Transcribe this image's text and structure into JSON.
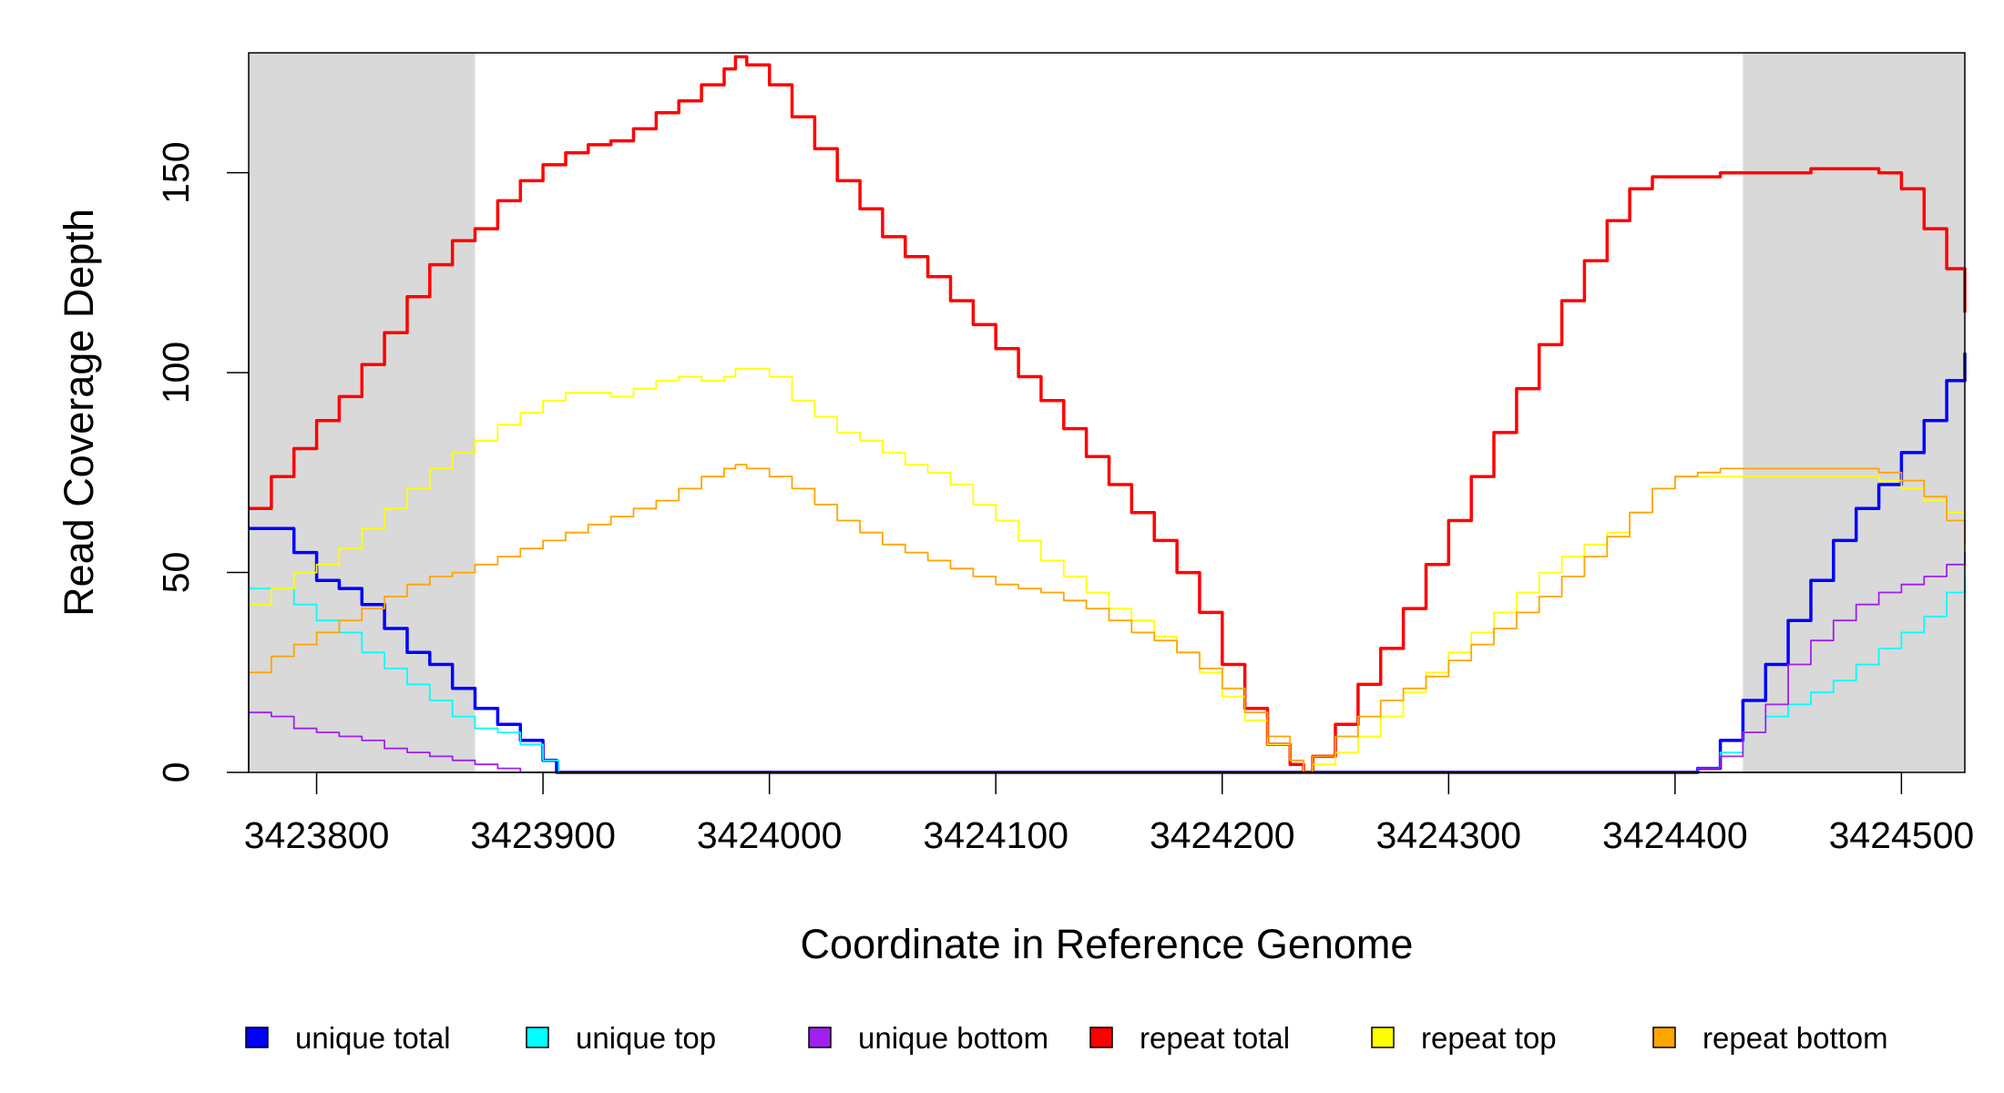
{
  "chart_data": {
    "type": "line",
    "xlabel": "Coordinate in Reference Genome",
    "ylabel": "Read Coverage Depth",
    "xlim": [
      3423770,
      3424528
    ],
    "ylim": [
      0,
      180
    ],
    "x_ticks": [
      3423800,
      3423900,
      3424000,
      3424100,
      3424200,
      3424300,
      3424400,
      3424500
    ],
    "y_ticks": [
      0,
      50,
      100,
      150
    ],
    "shaded_regions": [
      [
        3423770,
        3423870
      ],
      [
        3424430,
        3424528
      ]
    ],
    "shade_color": "#d9d9d9",
    "legend_position": "bottom",
    "series": [
      {
        "name": "unique total",
        "color": "#0000ff",
        "x": [
          3423770,
          3423785,
          3423790,
          3423800,
          3423810,
          3423820,
          3423830,
          3423840,
          3423850,
          3423860,
          3423870,
          3423880,
          3423890,
          3423900,
          3423906,
          3424404,
          3424410,
          3424420,
          3424430,
          3424440,
          3424450,
          3424460,
          3424470,
          3424480,
          3424490,
          3424500,
          3424510,
          3424520,
          3424528
        ],
        "values": [
          61,
          61,
          55,
          48,
          46,
          42,
          36,
          30,
          27,
          21,
          16,
          12,
          8,
          3,
          0,
          0,
          1,
          8,
          18,
          27,
          38,
          48,
          58,
          66,
          72,
          80,
          88,
          98,
          105
        ]
      },
      {
        "name": "unique top",
        "color": "#00ffff",
        "x": [
          3423770,
          3423785,
          3423790,
          3423800,
          3423810,
          3423820,
          3423830,
          3423840,
          3423850,
          3423860,
          3423870,
          3423880,
          3423890,
          3423900,
          3423907,
          3424404,
          3424410,
          3424420,
          3424430,
          3424440,
          3424450,
          3424460,
          3424470,
          3424480,
          3424490,
          3424500,
          3424510,
          3424520,
          3424528
        ],
        "values": [
          46,
          46,
          42,
          38,
          35,
          30,
          26,
          22,
          18,
          14,
          11,
          10,
          7,
          3,
          0,
          0,
          1,
          5,
          10,
          14,
          17,
          20,
          23,
          27,
          31,
          35,
          39,
          45,
          49
        ]
      },
      {
        "name": "unique bottom",
        "color": "#a020f0",
        "x": [
          3423770,
          3423780,
          3423790,
          3423800,
          3423810,
          3423820,
          3423830,
          3423840,
          3423850,
          3423860,
          3423870,
          3423880,
          3423885,
          3423890,
          3424404,
          3424410,
          3424420,
          3424430,
          3424440,
          3424450,
          3424460,
          3424470,
          3424480,
          3424490,
          3424500,
          3424510,
          3424520,
          3424528
        ],
        "values": [
          15,
          14,
          11,
          10,
          9,
          8,
          6,
          5,
          4,
          3,
          2,
          1,
          1,
          0,
          0,
          1,
          4,
          10,
          17,
          27,
          33,
          38,
          42,
          45,
          47,
          49,
          52,
          55
        ]
      },
      {
        "name": "repeat total",
        "color": "#ff0000",
        "x": [
          3423770,
          3423780,
          3423790,
          3423800,
          3423810,
          3423820,
          3423830,
          3423840,
          3423850,
          3423860,
          3423870,
          3423880,
          3423890,
          3423900,
          3423910,
          3423920,
          3423930,
          3423940,
          3423950,
          3423960,
          3423970,
          3423980,
          3423985,
          3423990,
          3424000,
          3424010,
          3424020,
          3424030,
          3424040,
          3424050,
          3424060,
          3424070,
          3424080,
          3424090,
          3424100,
          3424110,
          3424120,
          3424130,
          3424140,
          3424150,
          3424160,
          3424170,
          3424180,
          3424190,
          3424200,
          3424210,
          3424220,
          3424230,
          3424236,
          3424240,
          3424250,
          3424260,
          3424270,
          3424280,
          3424290,
          3424300,
          3424310,
          3424320,
          3424330,
          3424340,
          3424350,
          3424360,
          3424370,
          3424380,
          3424390,
          3424400,
          3424410,
          3424420,
          3424430,
          3424440,
          3424450,
          3424460,
          3424470,
          3424480,
          3424490,
          3424500,
          3424510,
          3424520,
          3424528
        ],
        "values": [
          66,
          74,
          81,
          88,
          94,
          102,
          110,
          119,
          127,
          133,
          136,
          143,
          148,
          152,
          155,
          157,
          158,
          161,
          165,
          168,
          172,
          176,
          179,
          177,
          172,
          164,
          156,
          148,
          141,
          134,
          129,
          124,
          118,
          112,
          106,
          99,
          93,
          86,
          79,
          72,
          65,
          58,
          50,
          40,
          27,
          16,
          7,
          2,
          0,
          4,
          12,
          22,
          31,
          41,
          52,
          63,
          74,
          85,
          96,
          107,
          118,
          128,
          138,
          146,
          149,
          149,
          149,
          150,
          150,
          150,
          150,
          151,
          151,
          151,
          150,
          146,
          136,
          126,
          115
        ]
      },
      {
        "name": "repeat top",
        "color": "#ffff00",
        "x": [
          3423770,
          3423780,
          3423790,
          3423800,
          3423810,
          3423820,
          3423830,
          3423840,
          3423850,
          3423860,
          3423870,
          3423880,
          3423890,
          3423900,
          3423910,
          3423920,
          3423930,
          3423940,
          3423950,
          3423960,
          3423970,
          3423980,
          3423985,
          3423990,
          3424000,
          3424010,
          3424020,
          3424030,
          3424040,
          3424050,
          3424060,
          3424070,
          3424080,
          3424090,
          3424100,
          3424110,
          3424120,
          3424130,
          3424140,
          3424150,
          3424160,
          3424170,
          3424180,
          3424190,
          3424200,
          3424210,
          3424220,
          3424230,
          3424236,
          3424240,
          3424250,
          3424260,
          3424270,
          3424280,
          3424290,
          3424300,
          3424310,
          3424320,
          3424330,
          3424340,
          3424350,
          3424360,
          3424370,
          3424380,
          3424390,
          3424400,
          3424410,
          3424420,
          3424430,
          3424440,
          3424450,
          3424460,
          3424470,
          3424480,
          3424490,
          3424500,
          3424510,
          3424520,
          3424528
        ],
        "values": [
          42,
          46,
          50,
          52,
          56,
          61,
          66,
          71,
          76,
          80,
          83,
          87,
          90,
          93,
          95,
          95,
          94,
          96,
          98,
          99,
          98,
          99,
          101,
          101,
          99,
          93,
          89,
          85,
          83,
          80,
          77,
          75,
          72,
          67,
          63,
          58,
          53,
          49,
          45,
          41,
          38,
          34,
          30,
          25,
          19,
          13,
          7,
          3,
          0,
          2,
          5,
          9,
          14,
          20,
          25,
          30,
          35,
          40,
          45,
          50,
          54,
          57,
          60,
          65,
          71,
          74,
          74,
          74,
          74,
          74,
          74,
          74,
          74,
          74,
          73,
          71,
          68,
          65,
          61
        ]
      },
      {
        "name": "repeat bottom",
        "color": "#ffa500",
        "x": [
          3423770,
          3423780,
          3423790,
          3423800,
          3423810,
          3423820,
          3423830,
          3423840,
          3423850,
          3423860,
          3423870,
          3423880,
          3423890,
          3423900,
          3423910,
          3423920,
          3423930,
          3423940,
          3423950,
          3423960,
          3423970,
          3423980,
          3423985,
          3423990,
          3424000,
          3424010,
          3424020,
          3424030,
          3424040,
          3424050,
          3424060,
          3424070,
          3424080,
          3424090,
          3424100,
          3424110,
          3424120,
          3424130,
          3424140,
          3424150,
          3424160,
          3424170,
          3424180,
          3424190,
          3424200,
          3424210,
          3424220,
          3424230,
          3424236,
          3424240,
          3424250,
          3424260,
          3424270,
          3424280,
          3424290,
          3424300,
          3424310,
          3424320,
          3424330,
          3424340,
          3424350,
          3424360,
          3424370,
          3424380,
          3424390,
          3424400,
          3424410,
          3424420,
          3424430,
          3424440,
          3424450,
          3424460,
          3424470,
          3424480,
          3424490,
          3424500,
          3424510,
          3424520,
          3424528
        ],
        "values": [
          25,
          29,
          32,
          35,
          38,
          41,
          44,
          47,
          49,
          50,
          52,
          54,
          56,
          58,
          60,
          62,
          64,
          66,
          68,
          71,
          74,
          76,
          77,
          76,
          74,
          71,
          67,
          63,
          60,
          57,
          55,
          53,
          51,
          49,
          47,
          46,
          45,
          43,
          41,
          38,
          35,
          33,
          30,
          26,
          21,
          15,
          9,
          3,
          0,
          4,
          9,
          14,
          18,
          21,
          24,
          28,
          32,
          36,
          40,
          44,
          49,
          54,
          59,
          65,
          71,
          74,
          75,
          76,
          76,
          76,
          76,
          76,
          76,
          76,
          75,
          73,
          69,
          63,
          57
        ]
      }
    ]
  }
}
